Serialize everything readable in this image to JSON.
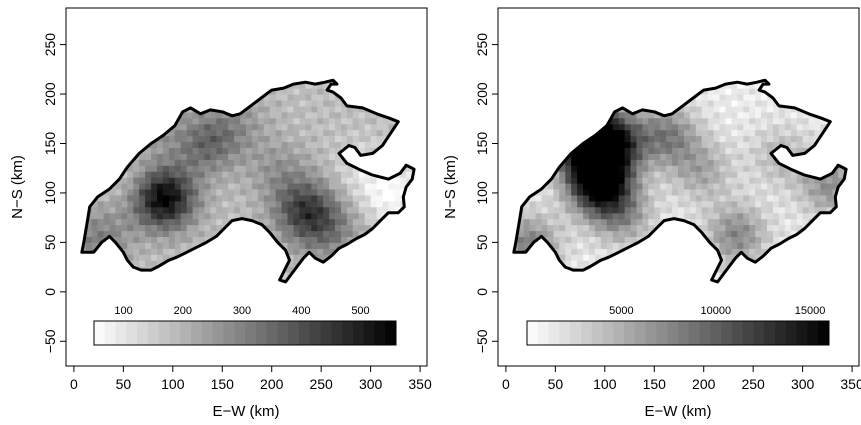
{
  "chart_data": [
    {
      "type": "heatmap",
      "xlabel": "E−W (km)",
      "ylabel": "N−S (km)",
      "xlim": [
        -8,
        357
      ],
      "ylim": [
        -75,
        287
      ],
      "x_ticks": [
        0,
        50,
        100,
        150,
        200,
        250,
        300,
        350
      ],
      "y_ticks": [
        -50,
        0,
        50,
        100,
        150,
        200,
        250
      ],
      "x_tick_labels": [
        "0",
        "50",
        "100",
        "150",
        "200",
        "250",
        "300",
        "350"
      ],
      "y_tick_labels": [
        "−50",
        "0",
        "50",
        "100",
        "150",
        "200",
        "250"
      ],
      "color_scale": {
        "low": "#ffffff",
        "high": "#000000",
        "range": [
          50,
          560
        ]
      },
      "legend_ticks": [
        100,
        200,
        300,
        400,
        500
      ],
      "legend_tick_labels": [
        "100",
        "200",
        "300",
        "400",
        "500"
      ],
      "legend_placement": "bottom inside plot",
      "grid": false,
      "outline": "Switzerland border",
      "features": [
        {
          "x": 88,
          "y": 92,
          "value": 560
        },
        {
          "x": 120,
          "y": 145,
          "value": 260
        },
        {
          "x": 140,
          "y": 150,
          "value": 290
        },
        {
          "x": 75,
          "y": 165,
          "value": 240
        },
        {
          "x": 165,
          "y": 170,
          "value": 240
        },
        {
          "x": 230,
          "y": 80,
          "value": 420
        },
        {
          "x": 205,
          "y": 120,
          "value": 260
        },
        {
          "x": 255,
          "y": 60,
          "value": 300
        },
        {
          "x": 55,
          "y": 110,
          "value": 150
        },
        {
          "x": 30,
          "y": 60,
          "value": 240
        },
        {
          "x": 15,
          "y": 45,
          "value": 260
        },
        {
          "x": 290,
          "y": 120,
          "value": 120
        },
        {
          "x": 320,
          "y": 95,
          "value": 60
        }
      ],
      "base_value": 180
    },
    {
      "type": "heatmap",
      "xlabel": "E−W (km)",
      "ylabel": "N−S (km)",
      "xlim": [
        -8,
        357
      ],
      "ylim": [
        -75,
        287
      ],
      "x_ticks": [
        0,
        50,
        100,
        150,
        200,
        250,
        300,
        350
      ],
      "y_ticks": [
        -50,
        0,
        50,
        100,
        150,
        200,
        250
      ],
      "x_tick_labels": [
        "0",
        "50",
        "100",
        "150",
        "200",
        "250",
        "300",
        "350"
      ],
      "y_tick_labels": [
        "−50",
        "0",
        "50",
        "100",
        "150",
        "200",
        "250"
      ],
      "color_scale": {
        "low": "#ffffff",
        "high": "#000000",
        "range": [
          0,
          16000
        ]
      },
      "legend_ticks": [
        5000,
        10000,
        15000
      ],
      "legend_tick_labels": [
        "5000",
        "10000",
        "15000"
      ],
      "legend_placement": "bottom inside plot",
      "grid": false,
      "outline": "Switzerland border",
      "features": [
        {
          "x": 92,
          "y": 105,
          "value": 14500
        },
        {
          "x": 105,
          "y": 150,
          "value": 12500
        },
        {
          "x": 75,
          "y": 155,
          "value": 11000
        },
        {
          "x": 85,
          "y": 130,
          "value": 10000
        },
        {
          "x": 160,
          "y": 155,
          "value": 8000
        },
        {
          "x": 230,
          "y": 55,
          "value": 7500
        },
        {
          "x": 115,
          "y": 75,
          "value": 6500
        },
        {
          "x": 195,
          "y": 120,
          "value": 5500
        },
        {
          "x": 20,
          "y": 45,
          "value": 8000
        },
        {
          "x": 325,
          "y": 105,
          "value": 7000
        },
        {
          "x": 275,
          "y": 135,
          "value": 4500
        }
      ],
      "base_value": 1200
    }
  ]
}
